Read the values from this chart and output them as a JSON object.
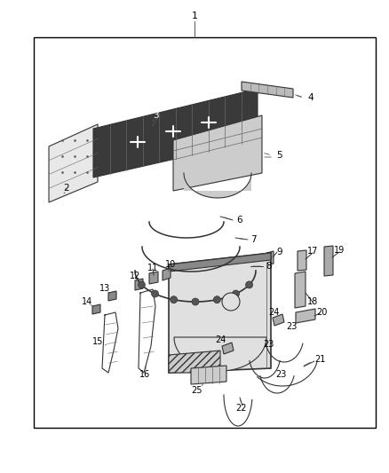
{
  "bg_color": "#ffffff",
  "line_color": "#000000",
  "fig_width": 4.38,
  "fig_height": 5.33,
  "dpi": 100
}
